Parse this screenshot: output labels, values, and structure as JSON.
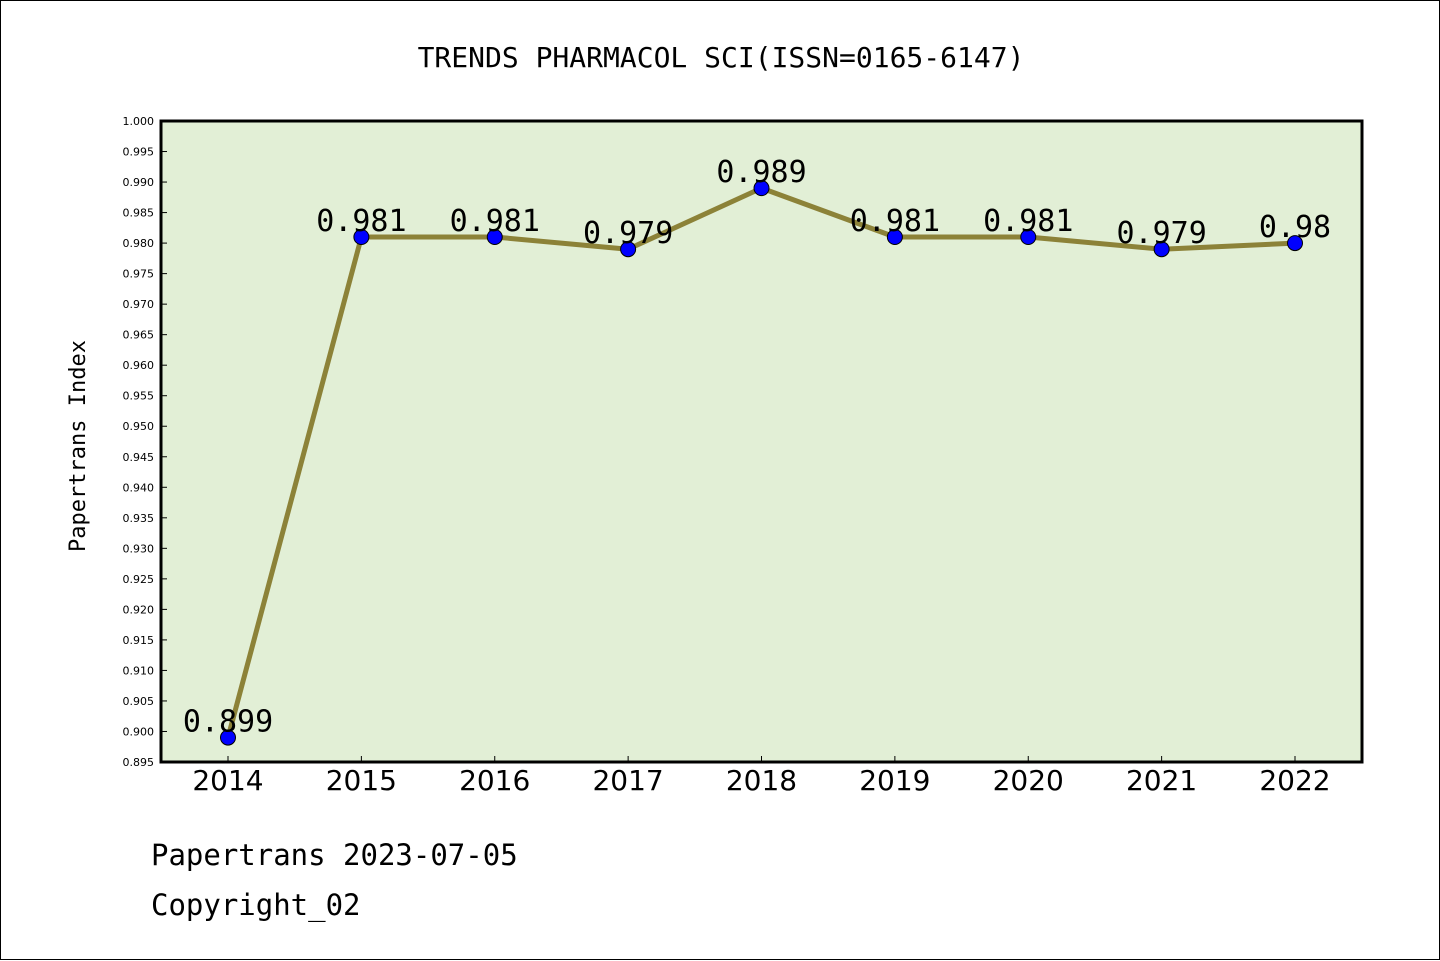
{
  "chart_data": {
    "type": "line",
    "title": "TRENDS PHARMACOL SCI(ISSN=0165-6147)",
    "xlabel": "",
    "ylabel": "Papertrans Index",
    "categories": [
      "2014",
      "2015",
      "2016",
      "2017",
      "2018",
      "2019",
      "2020",
      "2021",
      "2022"
    ],
    "series": [
      {
        "values": [
          0.899,
          0.981,
          0.981,
          0.979,
          0.989,
          0.981,
          0.981,
          0.979,
          0.98
        ],
        "data_labels": [
          "0.899",
          "0.981",
          "0.981",
          "0.979",
          "0.989",
          "0.981",
          "0.981",
          "0.979",
          "0.98"
        ]
      }
    ],
    "ylim": [
      0.895,
      1.0
    ],
    "yticks": [
      "0.895",
      "0.900",
      "0.905",
      "0.910",
      "0.915",
      "0.920",
      "0.925",
      "0.930",
      "0.935",
      "0.940",
      "0.945",
      "0.950",
      "0.955",
      "0.960",
      "0.965",
      "0.970",
      "0.975",
      "0.980",
      "0.985",
      "0.990",
      "0.995",
      "1.000"
    ],
    "grid": false,
    "legend": "none",
    "colors": {
      "plot_background": "#e2efd6",
      "line": "#8c8238",
      "marker": "#0000ff",
      "axes": "#000000"
    }
  },
  "footer": {
    "source": "Papertrans 2023-07-05",
    "copyright": "Copyright_02"
  }
}
